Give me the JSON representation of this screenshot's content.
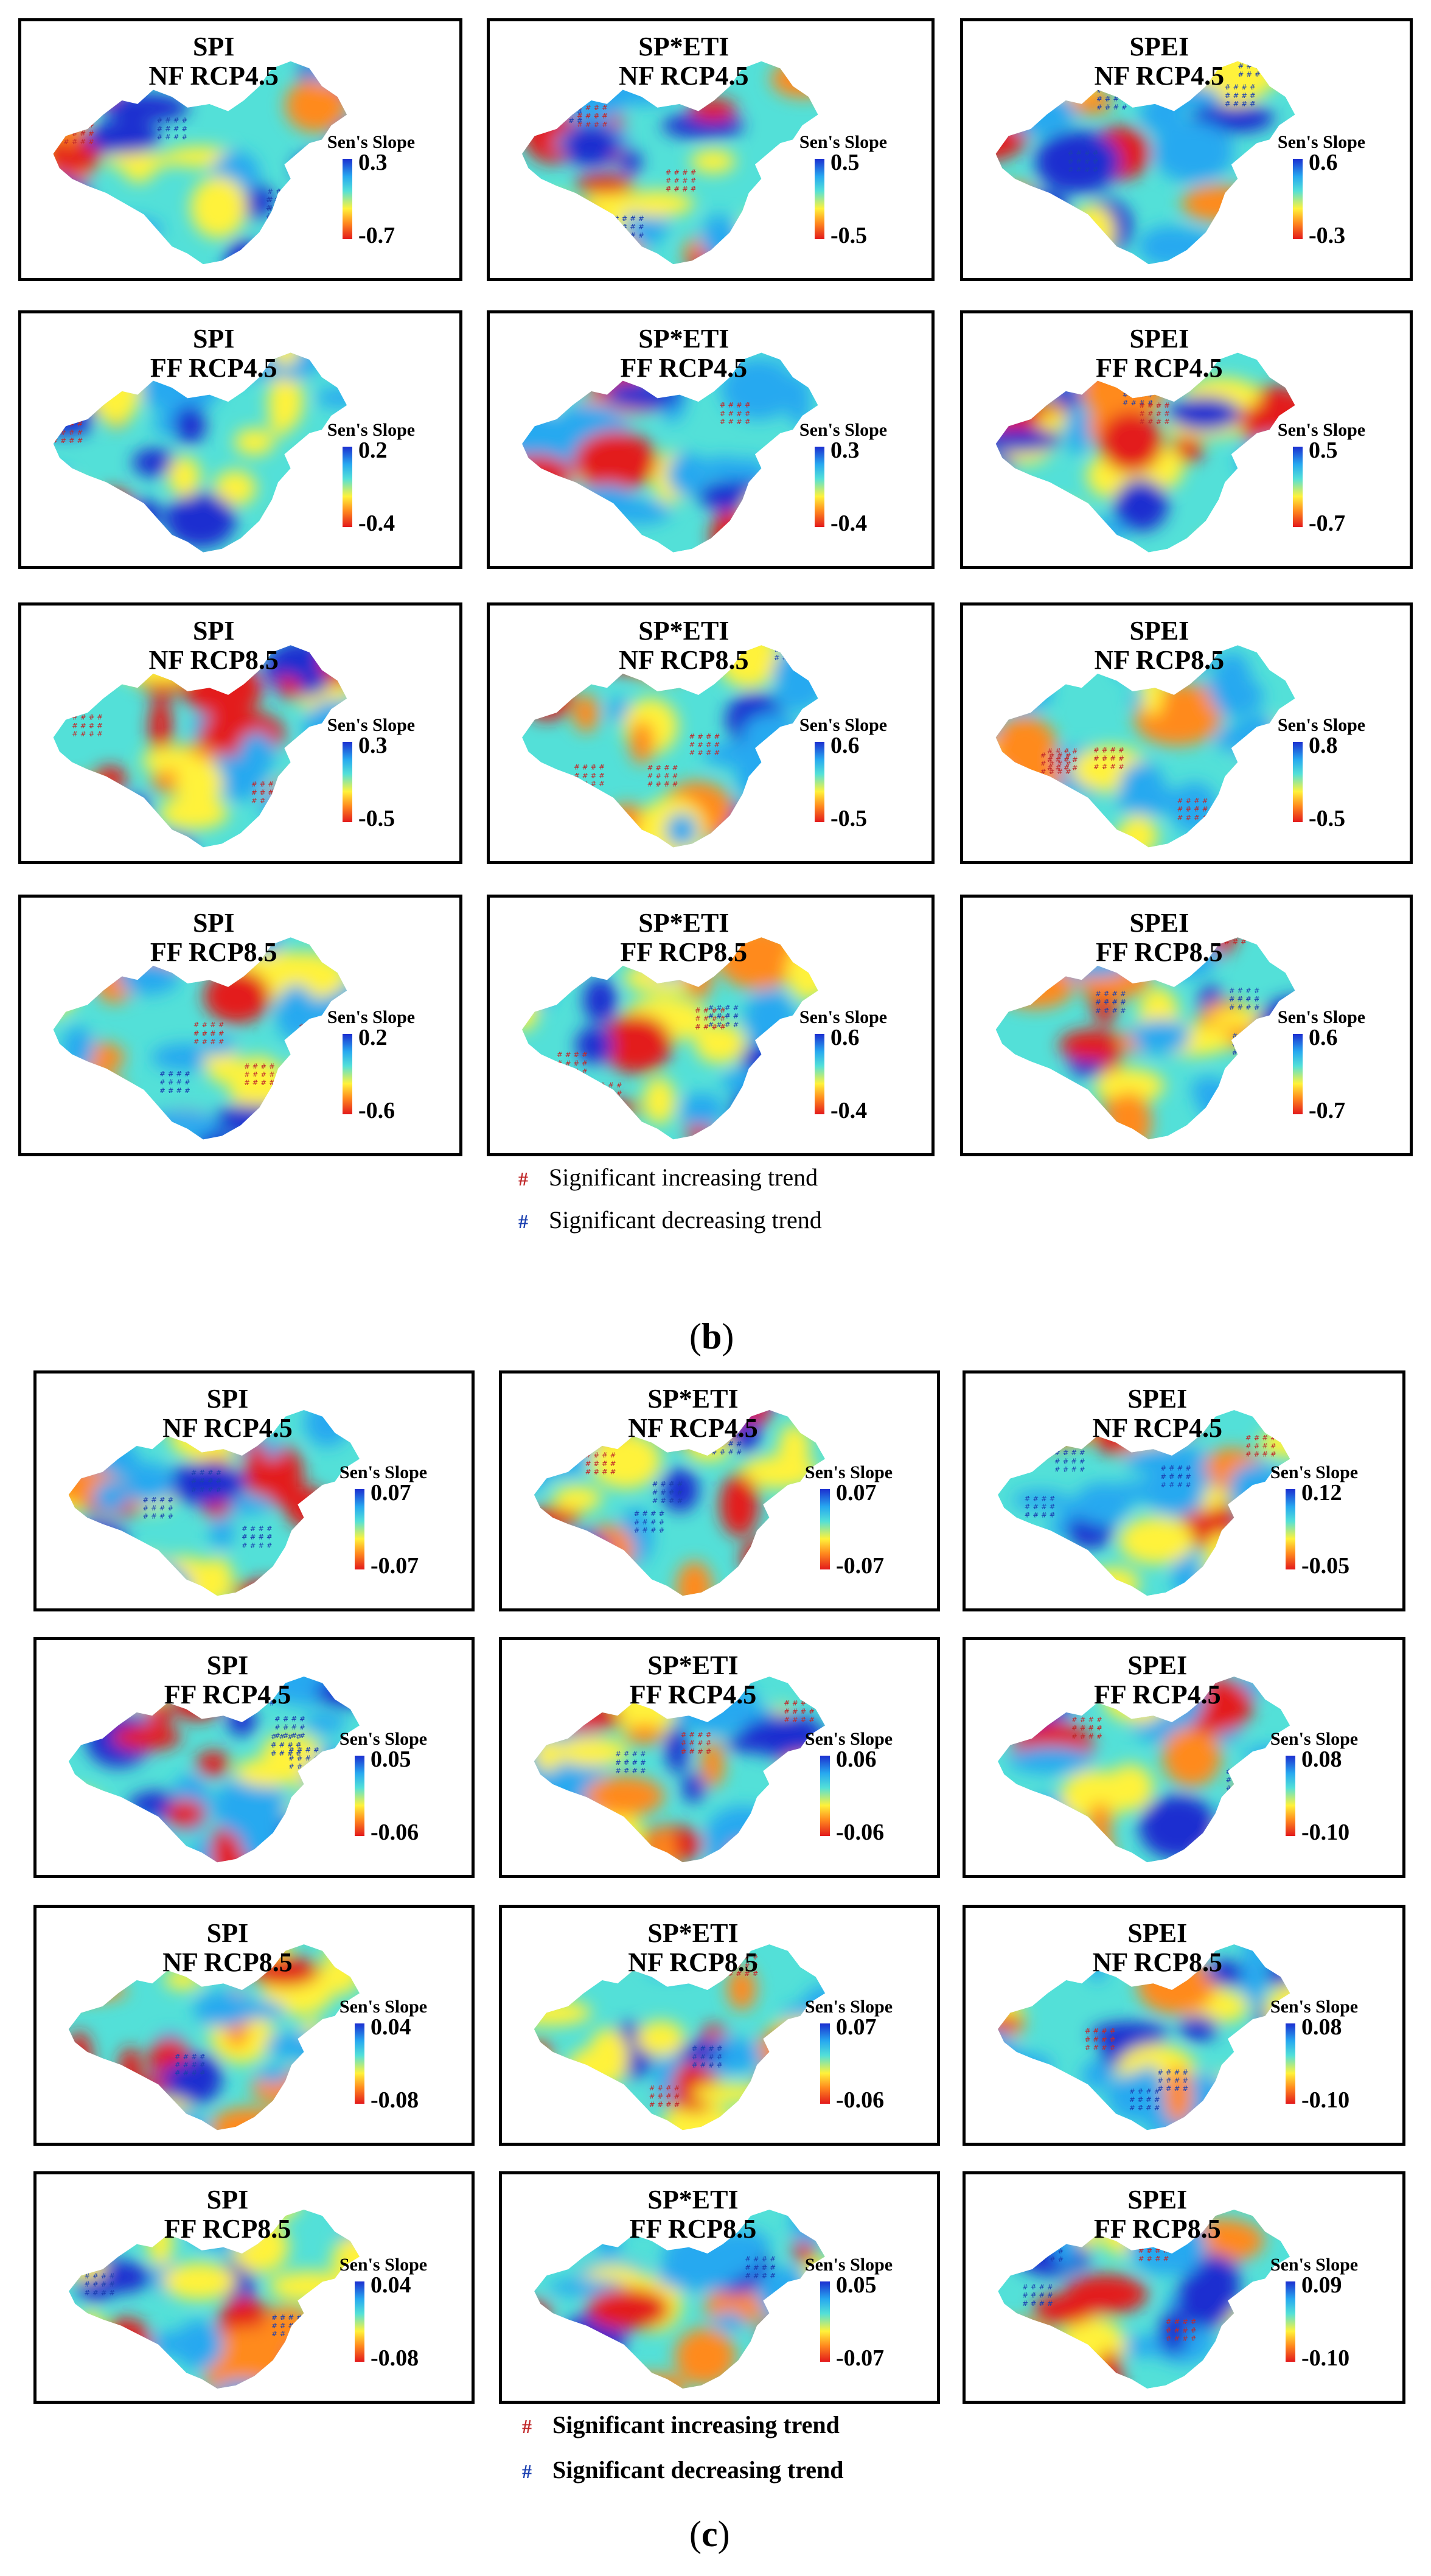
{
  "legend_common": {
    "title": "Sen's Slope"
  },
  "colors": {
    "high": "#1c2fd0",
    "mid_high": "#27a9f0",
    "mid": "#53e0d8",
    "mid_low": "#fff23a",
    "low_mid": "#ff8a1e",
    "low": "#e31a1c",
    "hash_inc": "#c0282a",
    "hash_dec": "#1a3fb0"
  },
  "section_b": {
    "label": "b",
    "panels": [
      {
        "index": "SPI",
        "scenario": "NF RCP4.5",
        "max": "0.3",
        "min": "-0.7"
      },
      {
        "index": "SP*ETI",
        "scenario": "NF RCP4.5",
        "max": "0.5",
        "min": "-0.5"
      },
      {
        "index": "SPEI",
        "scenario": "NF RCP4.5",
        "max": "0.6",
        "min": "-0.3"
      },
      {
        "index": "SPI",
        "scenario": "FF RCP4.5",
        "max": "0.2",
        "min": "-0.4"
      },
      {
        "index": "SP*ETI",
        "scenario": "FF RCP4.5",
        "max": "0.3",
        "min": "-0.4"
      },
      {
        "index": "SPEI",
        "scenario": "FF RCP4.5",
        "max": "0.5",
        "min": "-0.7"
      },
      {
        "index": "SPI",
        "scenario": "NF RCP8.5",
        "max": "0.3",
        "min": "-0.5"
      },
      {
        "index": "SP*ETI",
        "scenario": "NF RCP8.5",
        "max": "0.6",
        "min": "-0.5"
      },
      {
        "index": "SPEI",
        "scenario": "NF RCP8.5",
        "max": "0.8",
        "min": "-0.5"
      },
      {
        "index": "SPI",
        "scenario": "FF RCP8.5",
        "max": "0.2",
        "min": "-0.6"
      },
      {
        "index": "SP*ETI",
        "scenario": "FF RCP8.5",
        "max": "0.6",
        "min": "-0.4"
      },
      {
        "index": "SPEI",
        "scenario": "FF RCP8.5",
        "max": "0.6",
        "min": "-0.7"
      }
    ],
    "key": {
      "symbol": "#",
      "increasing": "Significant increasing trend",
      "decreasing": "Significant decreasing trend"
    }
  },
  "section_c": {
    "label": "c",
    "panels": [
      {
        "index": "SPI",
        "scenario": "NF RCP4.5",
        "max": "0.07",
        "min": "-0.07"
      },
      {
        "index": "SP*ETI",
        "scenario": "NF RCP4.5",
        "max": "0.07",
        "min": "-0.07"
      },
      {
        "index": "SPEI",
        "scenario": "NF RCP4.5",
        "max": "0.12",
        "min": "-0.05"
      },
      {
        "index": "SPI",
        "scenario": "FF RCP4.5",
        "max": "0.05",
        "min": "-0.06"
      },
      {
        "index": "SP*ETI",
        "scenario": "FF RCP4.5",
        "max": "0.06",
        "min": "-0.06"
      },
      {
        "index": "SPEI",
        "scenario": "FF RCP4.5",
        "max": "0.08",
        "min": "-0.10"
      },
      {
        "index": "SPI",
        "scenario": "NF RCP8.5",
        "max": "0.04",
        "min": "-0.08"
      },
      {
        "index": "SP*ETI",
        "scenario": "NF RCP8.5",
        "max": "0.07",
        "min": "-0.06"
      },
      {
        "index": "SPEI",
        "scenario": "NF RCP8.5",
        "max": "0.08",
        "min": "-0.10"
      },
      {
        "index": "SPI",
        "scenario": "FF RCP8.5",
        "max": "0.04",
        "min": "-0.08"
      },
      {
        "index": "SP*ETI",
        "scenario": "FF RCP8.5",
        "max": "0.05",
        "min": "-0.07"
      },
      {
        "index": "SPEI",
        "scenario": "FF RCP8.5",
        "max": "0.09",
        "min": "-0.10"
      }
    ],
    "key": {
      "symbol": "#",
      "increasing": "Significant increasing trend",
      "decreasing": "Significant decreasing trend"
    }
  }
}
